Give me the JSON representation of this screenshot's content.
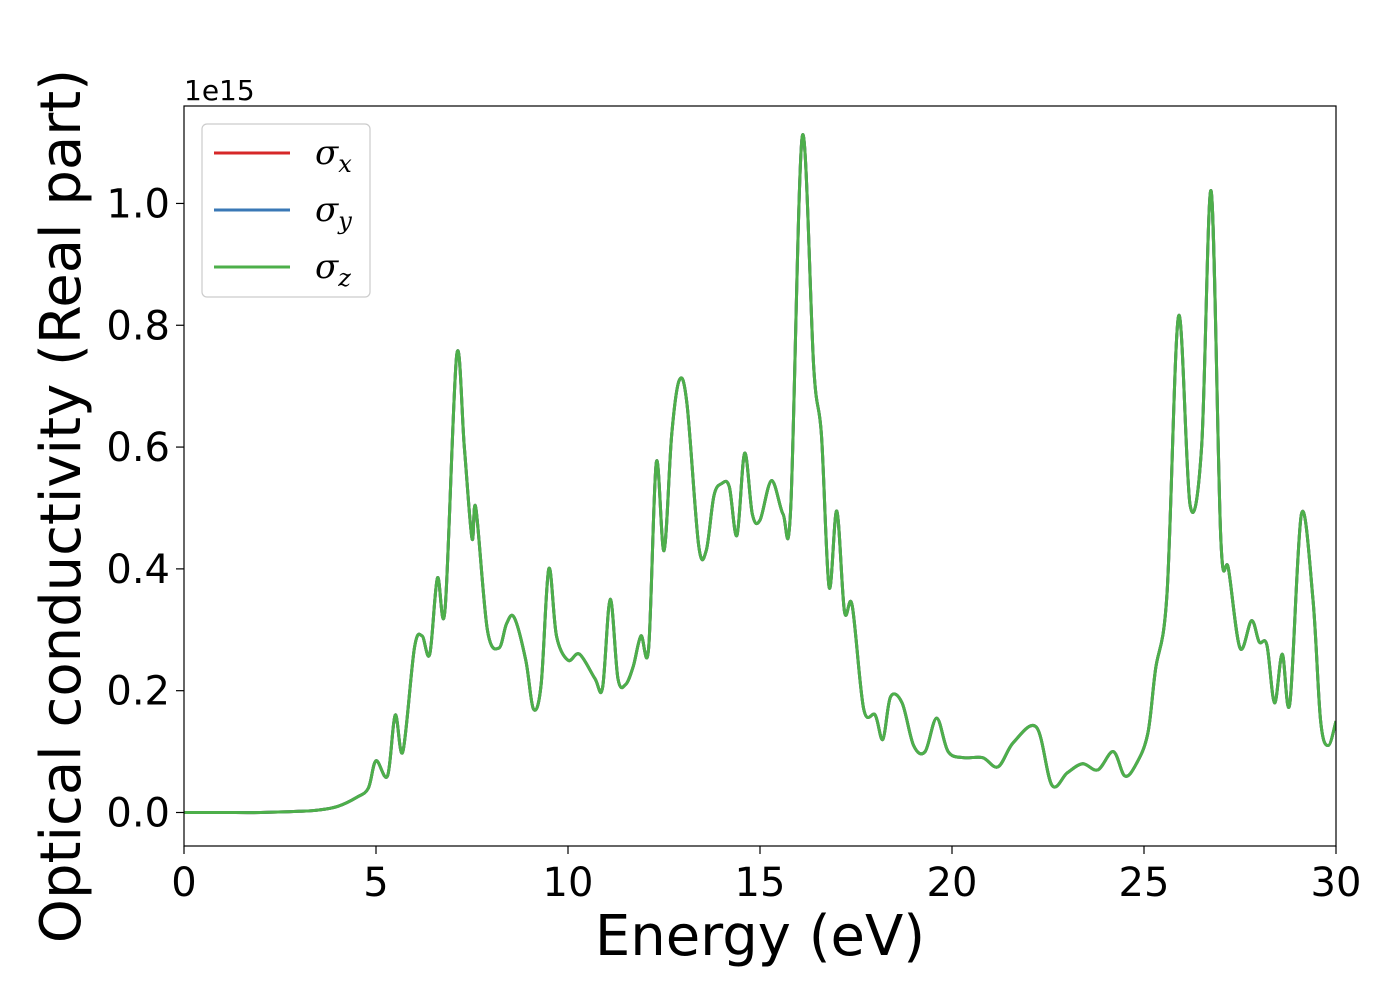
{
  "chart_data": {
    "type": "line",
    "title": "",
    "xlabel": "Energy (eV)",
    "ylabel": "Optical conductivity (Real part)",
    "y_offset_label": "1e15",
    "xlim": [
      0,
      30
    ],
    "ylim": [
      -0.055,
      1.16
    ],
    "x_ticks": [
      0,
      5,
      10,
      15,
      20,
      25,
      30
    ],
    "x_tick_labels": [
      "0",
      "5",
      "10",
      "15",
      "20",
      "25",
      "30"
    ],
    "y_ticks": [
      0.0,
      0.2,
      0.4,
      0.6,
      0.8,
      1.0
    ],
    "y_tick_labels": [
      "0.0",
      "0.2",
      "0.4",
      "0.6",
      "0.8",
      "1.0"
    ],
    "grid": false,
    "legend_position": "top-left",
    "series": [
      {
        "name": "σx",
        "symbol": "σ",
        "subscript": "x",
        "color": "#d62728",
        "x": [
          0,
          1,
          2,
          3,
          3.5,
          4,
          4.5,
          4.8,
          5.0,
          5.3,
          5.5,
          5.7,
          6.0,
          6.2,
          6.4,
          6.6,
          6.8,
          7.1,
          7.3,
          7.5,
          7.6,
          7.9,
          8.2,
          8.4,
          8.6,
          8.9,
          9.1,
          9.3,
          9.5,
          9.7,
          10.0,
          10.3,
          10.7,
          10.9,
          11.1,
          11.3,
          11.5,
          11.7,
          11.9,
          12.1,
          12.3,
          12.5,
          12.7,
          12.9,
          13.1,
          13.4,
          13.6,
          13.8,
          14.0,
          14.2,
          14.4,
          14.6,
          14.8,
          15.0,
          15.3,
          15.6,
          15.8,
          16.1,
          16.4,
          16.6,
          16.8,
          17.0,
          17.2,
          17.4,
          17.7,
          18.0,
          18.2,
          18.4,
          18.7,
          19.0,
          19.3,
          19.6,
          19.9,
          20.3,
          20.8,
          21.2,
          21.6,
          22.2,
          22.6,
          23.0,
          23.4,
          23.8,
          24.2,
          24.5,
          24.8,
          25.1,
          25.3,
          25.6,
          25.9,
          26.2,
          26.5,
          26.75,
          27.0,
          27.2,
          27.5,
          27.8,
          28.0,
          28.2,
          28.4,
          28.6,
          28.8,
          29.1,
          29.4,
          29.6,
          29.8,
          30.0
        ],
        "values": [
          0.0,
          0.0,
          0.0,
          0.002,
          0.004,
          0.01,
          0.025,
          0.04,
          0.085,
          0.06,
          0.16,
          0.1,
          0.27,
          0.29,
          0.26,
          0.385,
          0.335,
          0.75,
          0.6,
          0.45,
          0.5,
          0.3,
          0.27,
          0.31,
          0.32,
          0.25,
          0.17,
          0.21,
          0.4,
          0.29,
          0.25,
          0.26,
          0.22,
          0.205,
          0.35,
          0.22,
          0.21,
          0.24,
          0.29,
          0.27,
          0.575,
          0.43,
          0.62,
          0.71,
          0.67,
          0.44,
          0.43,
          0.52,
          0.54,
          0.535,
          0.455,
          0.59,
          0.49,
          0.48,
          0.545,
          0.49,
          0.5,
          1.11,
          0.73,
          0.62,
          0.37,
          0.495,
          0.33,
          0.34,
          0.17,
          0.16,
          0.12,
          0.19,
          0.18,
          0.11,
          0.1,
          0.155,
          0.1,
          0.09,
          0.09,
          0.075,
          0.115,
          0.14,
          0.045,
          0.065,
          0.08,
          0.07,
          0.1,
          0.06,
          0.08,
          0.13,
          0.235,
          0.36,
          0.815,
          0.505,
          0.6,
          1.02,
          0.45,
          0.4,
          0.27,
          0.315,
          0.28,
          0.275,
          0.18,
          0.26,
          0.18,
          0.49,
          0.35,
          0.15,
          0.11,
          0.15
        ]
      },
      {
        "name": "σy",
        "symbol": "σ",
        "subscript": "y",
        "color": "#3a78b6",
        "x": [
          0,
          1,
          2,
          3,
          3.5,
          4,
          4.5,
          4.8,
          5.0,
          5.3,
          5.5,
          5.7,
          6.0,
          6.2,
          6.4,
          6.6,
          6.8,
          7.1,
          7.3,
          7.5,
          7.6,
          7.9,
          8.2,
          8.4,
          8.6,
          8.9,
          9.1,
          9.3,
          9.5,
          9.7,
          10.0,
          10.3,
          10.7,
          10.9,
          11.1,
          11.3,
          11.5,
          11.7,
          11.9,
          12.1,
          12.3,
          12.5,
          12.7,
          12.9,
          13.1,
          13.4,
          13.6,
          13.8,
          14.0,
          14.2,
          14.4,
          14.6,
          14.8,
          15.0,
          15.3,
          15.6,
          15.8,
          16.1,
          16.4,
          16.6,
          16.8,
          17.0,
          17.2,
          17.4,
          17.7,
          18.0,
          18.2,
          18.4,
          18.7,
          19.0,
          19.3,
          19.6,
          19.9,
          20.3,
          20.8,
          21.2,
          21.6,
          22.2,
          22.6,
          23.0,
          23.4,
          23.8,
          24.2,
          24.5,
          24.8,
          25.1,
          25.3,
          25.6,
          25.9,
          26.2,
          26.5,
          26.75,
          27.0,
          27.2,
          27.5,
          27.8,
          28.0,
          28.2,
          28.4,
          28.6,
          28.8,
          29.1,
          29.4,
          29.6,
          29.8,
          30.0
        ],
        "values": [
          0.0,
          0.0,
          0.0,
          0.002,
          0.004,
          0.01,
          0.025,
          0.04,
          0.085,
          0.06,
          0.16,
          0.1,
          0.27,
          0.29,
          0.26,
          0.385,
          0.335,
          0.75,
          0.6,
          0.45,
          0.5,
          0.3,
          0.27,
          0.31,
          0.32,
          0.25,
          0.17,
          0.21,
          0.4,
          0.29,
          0.25,
          0.26,
          0.22,
          0.205,
          0.35,
          0.22,
          0.21,
          0.24,
          0.29,
          0.27,
          0.575,
          0.43,
          0.62,
          0.71,
          0.67,
          0.44,
          0.43,
          0.52,
          0.54,
          0.535,
          0.455,
          0.59,
          0.49,
          0.48,
          0.545,
          0.49,
          0.5,
          1.11,
          0.73,
          0.62,
          0.37,
          0.495,
          0.33,
          0.34,
          0.17,
          0.16,
          0.12,
          0.19,
          0.18,
          0.11,
          0.1,
          0.155,
          0.1,
          0.09,
          0.09,
          0.075,
          0.115,
          0.14,
          0.045,
          0.065,
          0.08,
          0.07,
          0.1,
          0.06,
          0.08,
          0.13,
          0.235,
          0.36,
          0.815,
          0.505,
          0.6,
          1.02,
          0.45,
          0.4,
          0.27,
          0.315,
          0.28,
          0.275,
          0.18,
          0.26,
          0.18,
          0.49,
          0.35,
          0.15,
          0.11,
          0.15
        ]
      },
      {
        "name": "σz",
        "symbol": "σ",
        "subscript": "z",
        "color": "#4daf4a",
        "x": [
          0,
          1,
          2,
          3,
          3.5,
          4,
          4.5,
          4.8,
          5.0,
          5.3,
          5.5,
          5.7,
          6.0,
          6.2,
          6.4,
          6.6,
          6.8,
          7.1,
          7.3,
          7.5,
          7.6,
          7.9,
          8.2,
          8.4,
          8.6,
          8.9,
          9.1,
          9.3,
          9.5,
          9.7,
          10.0,
          10.3,
          10.7,
          10.9,
          11.1,
          11.3,
          11.5,
          11.7,
          11.9,
          12.1,
          12.3,
          12.5,
          12.7,
          12.9,
          13.1,
          13.4,
          13.6,
          13.8,
          14.0,
          14.2,
          14.4,
          14.6,
          14.8,
          15.0,
          15.3,
          15.6,
          15.8,
          16.1,
          16.4,
          16.6,
          16.8,
          17.0,
          17.2,
          17.4,
          17.7,
          18.0,
          18.2,
          18.4,
          18.7,
          19.0,
          19.3,
          19.6,
          19.9,
          20.3,
          20.8,
          21.2,
          21.6,
          22.2,
          22.6,
          23.0,
          23.4,
          23.8,
          24.2,
          24.5,
          24.8,
          25.1,
          25.3,
          25.6,
          25.9,
          26.2,
          26.5,
          26.75,
          27.0,
          27.2,
          27.5,
          27.8,
          28.0,
          28.2,
          28.4,
          28.6,
          28.8,
          29.1,
          29.4,
          29.6,
          29.8,
          30.0
        ],
        "values": [
          0.0,
          0.0,
          0.0,
          0.002,
          0.004,
          0.01,
          0.025,
          0.04,
          0.085,
          0.06,
          0.16,
          0.1,
          0.27,
          0.29,
          0.26,
          0.385,
          0.335,
          0.75,
          0.6,
          0.45,
          0.5,
          0.3,
          0.27,
          0.31,
          0.32,
          0.25,
          0.17,
          0.21,
          0.4,
          0.29,
          0.25,
          0.26,
          0.22,
          0.205,
          0.35,
          0.22,
          0.21,
          0.24,
          0.29,
          0.27,
          0.575,
          0.43,
          0.62,
          0.71,
          0.67,
          0.44,
          0.43,
          0.52,
          0.54,
          0.535,
          0.455,
          0.59,
          0.49,
          0.48,
          0.545,
          0.49,
          0.5,
          1.11,
          0.73,
          0.62,
          0.37,
          0.495,
          0.33,
          0.34,
          0.17,
          0.16,
          0.12,
          0.19,
          0.18,
          0.11,
          0.1,
          0.155,
          0.1,
          0.09,
          0.09,
          0.075,
          0.115,
          0.14,
          0.045,
          0.065,
          0.08,
          0.07,
          0.1,
          0.06,
          0.08,
          0.13,
          0.235,
          0.36,
          0.815,
          0.505,
          0.6,
          1.02,
          0.45,
          0.4,
          0.27,
          0.315,
          0.28,
          0.275,
          0.18,
          0.26,
          0.18,
          0.49,
          0.35,
          0.15,
          0.11,
          0.15
        ]
      }
    ]
  }
}
